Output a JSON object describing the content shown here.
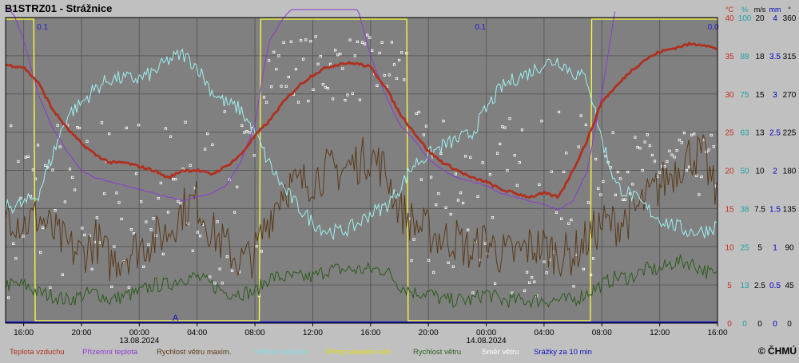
{
  "title": "B1STRZ01 - Strážnice",
  "copyright": "© ČHMÚ",
  "axis_unit_headers": [
    "°C",
    "%",
    "m/s",
    "mm",
    "°"
  ],
  "colors": {
    "background": "#c0c0c0",
    "plot_bg": "#808080",
    "grid": "#5a5a5a",
    "temperature": "#b03020",
    "feels_like": "#8a3ad0",
    "gust": "#5a3a1a",
    "humidity": "#a0f0f0",
    "sunshine": "#ffff40",
    "wind_speed": "#2e5a1e",
    "wind_dir": "#ffffff",
    "precip": "#1010c0"
  },
  "chart_data": {
    "type": "line",
    "x_unit": "hours since 13.08.2024 00:00",
    "x_range": [
      -9.25,
      40
    ],
    "x_ticks": [
      {
        "h": -8,
        "label": "16:00"
      },
      {
        "h": -4,
        "label": "20:00"
      },
      {
        "h": 0,
        "label": "00:00",
        "date": "13.08.2024"
      },
      {
        "h": 4,
        "label": "04:00"
      },
      {
        "h": 8,
        "label": "08:00"
      },
      {
        "h": 12,
        "label": "12:00"
      },
      {
        "h": 16,
        "label": "16:00"
      },
      {
        "h": 20,
        "label": "20:00"
      },
      {
        "h": 24,
        "label": "00:00",
        "date": "14.08.2024"
      },
      {
        "h": 28,
        "label": "04:00"
      },
      {
        "h": 32,
        "label": "08:00"
      },
      {
        "h": 36,
        "label": "12:00"
      },
      {
        "h": 40,
        "label": "16:00"
      }
    ],
    "right_axes": [
      {
        "name": "temperature",
        "unit": "°C",
        "color": "#c03020",
        "ticks": [
          "0",
          "5",
          "10",
          "15",
          "20",
          "25",
          "30",
          "35",
          "40"
        ]
      },
      {
        "name": "humidity",
        "unit": "%",
        "color": "#20a0a0",
        "ticks": [
          "0",
          "13",
          "25",
          "38",
          "50",
          "63",
          "75",
          "88",
          "100"
        ]
      },
      {
        "name": "wind",
        "unit": "m/s",
        "color": "#000000",
        "ticks": [
          "0",
          "2.5",
          "5",
          "7.5",
          "10",
          "13",
          "15",
          "18",
          "20"
        ]
      },
      {
        "name": "precip",
        "unit": "mm",
        "color": "#0000c0",
        "ticks": [
          "0",
          "0.5",
          "1",
          "1.5",
          "2",
          "2.5",
          "3",
          "3.5",
          "4"
        ]
      },
      {
        "name": "wind_dir",
        "unit": "°",
        "color": "#000000",
        "ticks": [
          "0",
          "45",
          "90",
          "135",
          "180",
          "225",
          "270",
          "315",
          "360"
        ]
      }
    ],
    "precip_labels": [
      {
        "h": -6.7,
        "label": "0.1"
      },
      {
        "h": 15.5,
        "label": ""
      },
      {
        "h": 23.6,
        "label": "0.1"
      },
      {
        "h": 39.7,
        "label": "0.0"
      }
    ],
    "rain_marker": {
      "h": 2.5,
      "label": "A"
    },
    "legend": [
      {
        "label": "Teplota vzduchu",
        "color": "#b03020"
      },
      {
        "label": "Přízemní teplota",
        "color": "#8a3ad0"
      },
      {
        "label": "Rychlost větru maxim.",
        "color": "#5a3a1a"
      },
      {
        "label": "Vlhkost vzduchu",
        "color": "#80e0e0"
      },
      {
        "label": "Přímý sluneční svit",
        "color": "#e0e000"
      },
      {
        "label": "Rychlost větru",
        "color": "#2e5a1e"
      },
      {
        "label": "Směr větru",
        "color": "#ffffff"
      },
      {
        "label": "Srážky za 10 min",
        "color": "#1010c0"
      }
    ],
    "series": [
      {
        "name": "Teplota vzduchu",
        "scale": "temperature",
        "x": [
          -9.25,
          -8,
          -7,
          -6,
          -5,
          -4,
          -3,
          -2,
          -1,
          0,
          1,
          2,
          3,
          4,
          5,
          6,
          7,
          8,
          8.5,
          9,
          10,
          11,
          12,
          13,
          14,
          15,
          16,
          17,
          18,
          19,
          20,
          21,
          22,
          23,
          24,
          25,
          26,
          27,
          28,
          29,
          30,
          31,
          32,
          33,
          34,
          35,
          36,
          37,
          38,
          39,
          40
        ],
        "values": [
          33.8,
          33.5,
          31.5,
          28,
          25.5,
          23.5,
          22,
          21,
          21,
          20.5,
          20,
          19,
          20,
          20,
          19.5,
          20.5,
          22,
          24.5,
          25.5,
          26.5,
          29,
          31,
          32.5,
          33.5,
          34,
          34,
          33.5,
          31,
          27.5,
          25,
          22.5,
          21,
          20,
          19,
          18.5,
          17.5,
          17,
          16.5,
          17,
          16.5,
          20,
          24,
          29,
          31,
          33,
          34.5,
          35.5,
          36,
          36.5,
          36.5,
          35.8
        ]
      },
      {
        "name": "Přízemní teplota",
        "scale": "temperature",
        "x": [
          -9.25,
          -8.6,
          -8,
          -7,
          -6,
          -5,
          -4,
          -3,
          -2,
          -1,
          0,
          1,
          2,
          3,
          4,
          5,
          6,
          7,
          8,
          8.5,
          9,
          10,
          11,
          12,
          14,
          15,
          16,
          17,
          18,
          19,
          20,
          21,
          22,
          23,
          24,
          25,
          26,
          27,
          28,
          29,
          30,
          31,
          32,
          33
        ],
        "values": [
          42,
          40,
          37,
          30,
          25.5,
          22.5,
          20,
          19,
          18.5,
          18,
          17.5,
          17,
          16.5,
          16,
          16.5,
          17,
          18,
          21,
          26,
          32,
          37,
          40,
          42,
          44,
          45,
          42,
          35,
          30,
          26,
          24,
          21.5,
          20,
          19,
          18.5,
          18,
          17,
          16.5,
          16,
          15.5,
          14.8,
          16,
          20,
          30,
          42
        ]
      },
      {
        "name": "Vlhkost vzduchu",
        "scale": "humidity",
        "x": [
          -9.25,
          -8,
          -7,
          -6,
          -5,
          -4,
          -3,
          -2,
          -1,
          0,
          1,
          2,
          3,
          4,
          5,
          6,
          7,
          8,
          9,
          10,
          11,
          12,
          13,
          14,
          15,
          16,
          17,
          18,
          19,
          20,
          21,
          22,
          23,
          24,
          25,
          26,
          27,
          28,
          29,
          30,
          31,
          32,
          33,
          34,
          35,
          36,
          37,
          38,
          39,
          40
        ],
        "values": [
          38,
          39,
          42,
          55,
          68,
          72,
          77,
          80,
          80,
          80,
          82,
          86,
          88,
          84,
          76,
          72,
          70,
          62,
          52,
          44,
          38,
          33,
          30,
          30,
          32,
          36,
          38,
          44,
          52,
          55,
          58,
          60,
          62,
          70,
          77,
          80,
          82,
          85,
          86,
          82,
          80,
          60,
          45,
          42,
          38,
          34,
          32,
          30,
          30,
          32
        ]
      },
      {
        "name": "Rychlost větru maxim.",
        "scale": "wind",
        "x": [
          -9.25,
          -8,
          -7,
          -6,
          -5,
          -4,
          -3,
          -2,
          -1,
          0,
          1,
          2,
          3,
          4,
          5,
          6,
          7,
          8,
          9,
          10,
          11,
          12,
          13,
          14,
          15,
          16,
          17,
          18,
          19,
          20,
          21,
          22,
          23,
          24,
          25,
          26,
          27,
          28,
          29,
          30,
          31,
          32,
          33,
          34,
          35,
          36,
          37,
          38,
          39,
          40
        ],
        "values": [
          7.5,
          6.5,
          7,
          6,
          5,
          4.5,
          5.5,
          4,
          4.5,
          5,
          5.5,
          6,
          7.5,
          8,
          6,
          5,
          4,
          4.5,
          7,
          9,
          9,
          9.5,
          10,
          10,
          10.5,
          11,
          10,
          7.5,
          6.5,
          6,
          5.5,
          5.5,
          4.5,
          5.5,
          4.5,
          4.5,
          5,
          5,
          4.5,
          4.5,
          5.5,
          6.5,
          6.5,
          7,
          8,
          9,
          10,
          11,
          11,
          8
        ]
      },
      {
        "name": "Rychlost větru",
        "scale": "wind",
        "x": [
          -9.25,
          -8,
          -7,
          -6,
          -5,
          -4,
          -3,
          -2,
          -1,
          0,
          1,
          2,
          3,
          4,
          5,
          6,
          7,
          8,
          9,
          10,
          11,
          12,
          13,
          14,
          15,
          16,
          17,
          18,
          19,
          20,
          21,
          22,
          23,
          24,
          25,
          26,
          27,
          28,
          29,
          30,
          31,
          32,
          33,
          34,
          35,
          36,
          37,
          38,
          39,
          40
        ],
        "values": [
          2.5,
          2.5,
          2,
          1.8,
          1.5,
          1.8,
          2,
          1.5,
          1.8,
          2,
          2.5,
          2.5,
          3,
          3,
          2.5,
          2,
          2,
          2,
          3,
          3,
          3,
          3,
          3.5,
          3.5,
          3.5,
          3.5,
          3.5,
          2.5,
          2,
          2,
          1.5,
          1.5,
          1.5,
          2,
          1.5,
          1.5,
          1.5,
          1.5,
          1.5,
          1.5,
          2,
          2.5,
          3,
          3,
          3.5,
          3.5,
          4,
          4,
          3.5,
          3
        ]
      },
      {
        "name": "Přímý sluneční svit",
        "scale": "binary",
        "x": [
          -9.25,
          -7.3,
          -7.2,
          -5,
          8.3,
          8.4,
          9.5,
          9.6,
          18.5,
          18.6,
          23,
          23.1,
          31.2,
          31.3,
          40
        ],
        "values": [
          1,
          1,
          0,
          0,
          0,
          1,
          1,
          1,
          1,
          0,
          0,
          0,
          0,
          1,
          1
        ]
      }
    ]
  }
}
